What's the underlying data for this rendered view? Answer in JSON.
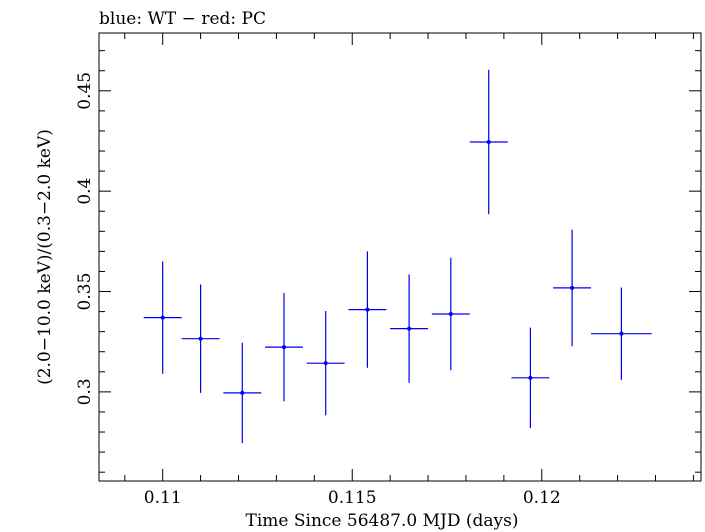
{
  "chart_data": {
    "type": "scatter",
    "title": "blue: WT − red: PC",
    "xlabel": "Time Since 56487.0 MJD (days)",
    "ylabel": "(2.0−10.0 keV)/(0.3−2.0 keV)",
    "xlim": [
      0.10832,
      0.1242
    ],
    "ylim": [
      0.2556,
      0.4788
    ],
    "xticks": [
      {
        "value": 0.11,
        "label": "0.11"
      },
      {
        "value": 0.115,
        "label": "0.115"
      },
      {
        "value": 0.12,
        "label": "0.12"
      }
    ],
    "yticks": [
      {
        "value": 0.3,
        "label": "0.3"
      },
      {
        "value": 0.35,
        "label": "0.35"
      },
      {
        "value": 0.4,
        "label": "0.4"
      },
      {
        "value": 0.45,
        "label": "0.45"
      }
    ],
    "x_minor_step": 0.001,
    "y_minor_step": 0.01,
    "series": [
      {
        "color": "#0000ee",
        "points": [
          {
            "x": 0.11,
            "xerr": 0.0005,
            "y": 0.337,
            "yerr": 0.028
          },
          {
            "x": 0.111,
            "xerr": 0.0005,
            "y": 0.3265,
            "yerr": 0.027
          },
          {
            "x": 0.1121,
            "xerr": 0.0005,
            "y": 0.2995,
            "yerr": 0.025
          },
          {
            "x": 0.1132,
            "xerr": 0.0005,
            "y": 0.3223,
            "yerr": 0.027
          },
          {
            "x": 0.1143,
            "xerr": 0.0005,
            "y": 0.3143,
            "yerr": 0.026
          },
          {
            "x": 0.1154,
            "xerr": 0.0005,
            "y": 0.341,
            "yerr": 0.029
          },
          {
            "x": 0.1165,
            "xerr": 0.0005,
            "y": 0.3315,
            "yerr": 0.027
          },
          {
            "x": 0.1176,
            "xerr": 0.0005,
            "y": 0.3388,
            "yerr": 0.028
          },
          {
            "x": 0.1186,
            "xerr": 0.0005,
            "y": 0.4245,
            "yerr": 0.036
          },
          {
            "x": 0.1197,
            "xerr": 0.0005,
            "y": 0.307,
            "yerr": 0.025
          },
          {
            "x": 0.1208,
            "xerr": 0.0005,
            "y": 0.3518,
            "yerr": 0.029
          },
          {
            "x": 0.1221,
            "xerr": 0.0008,
            "y": 0.329,
            "yerr": 0.023
          }
        ]
      }
    ]
  }
}
